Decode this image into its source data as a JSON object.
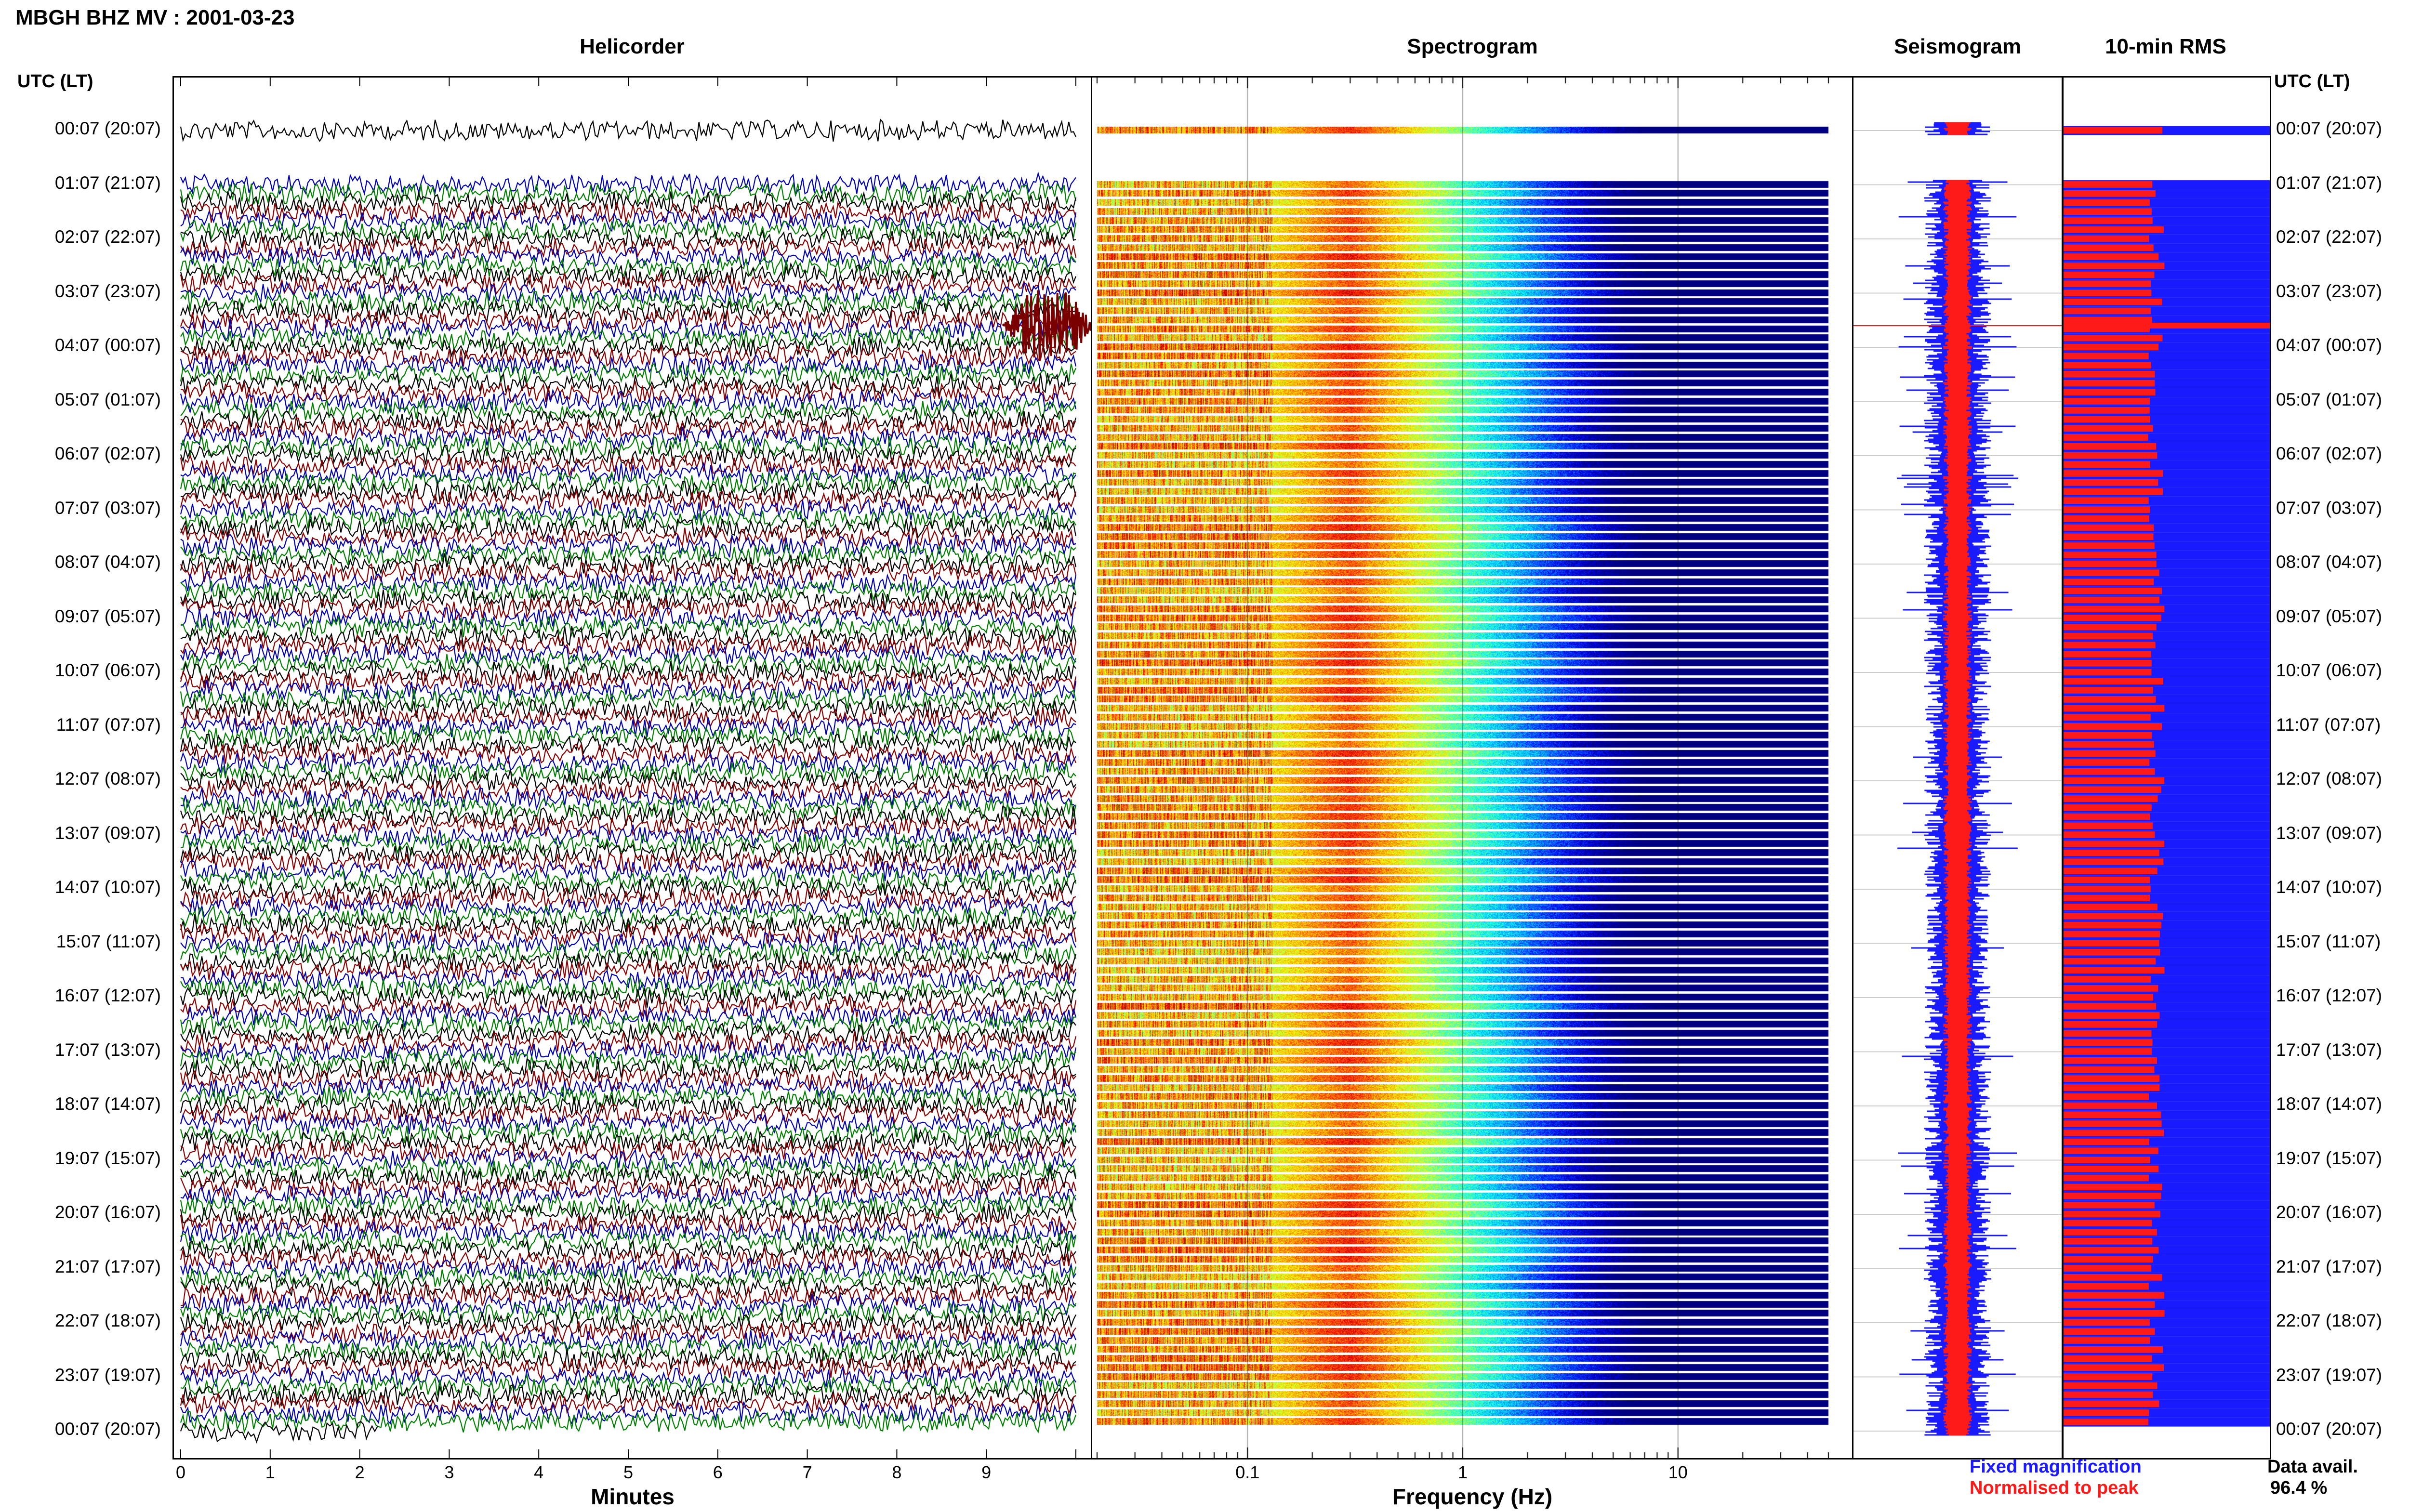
{
  "header": {
    "title": "MBGH BHZ MV : 2001-03-23"
  },
  "panels": {
    "helicorder": "Helicorder",
    "spectrogram": "Spectrogram",
    "seismogram": "Seismogram",
    "rms": "10-min RMS"
  },
  "axes": {
    "left_header": "UTC (LT)",
    "right_header": "UTC (LT)",
    "helicorder_xlabel": "Minutes",
    "spectrogram_xlabel": "Frequency (Hz)"
  },
  "legend": {
    "fixed": "Fixed magnification",
    "normalised": "Normalised to peak",
    "colors": {
      "fixed": "#1a1aff",
      "normalised": "#ff1a1a"
    }
  },
  "data_availability": {
    "label": "Data avail.",
    "value": "96.4 %"
  },
  "time_labels": [
    "00:07 (20:07)",
    "01:07 (21:07)",
    "02:07 (22:07)",
    "03:07 (23:07)",
    "04:07 (00:07)",
    "05:07 (01:07)",
    "06:07 (02:07)",
    "07:07 (03:07)",
    "08:07 (04:07)",
    "09:07 (05:07)",
    "10:07 (06:07)",
    "11:07 (07:07)",
    "12:07 (08:07)",
    "13:07 (09:07)",
    "14:07 (10:07)",
    "15:07 (11:07)",
    "16:07 (12:07)",
    "17:07 (13:07)",
    "18:07 (14:07)",
    "19:07 (15:07)",
    "20:07 (16:07)",
    "21:07 (17:07)",
    "22:07 (18:07)",
    "23:07 (19:07)",
    "00:07 (20:07)"
  ],
  "chart_data": [
    {
      "type": "line",
      "panel": "Helicorder",
      "xlabel": "Minutes",
      "xlim": [
        0,
        10
      ],
      "x_ticks": [
        "0",
        "1",
        "2",
        "3",
        "4",
        "5",
        "6",
        "7",
        "8",
        "9"
      ],
      "trace_colors": [
        "#000000",
        "#8b0000",
        "#0000b0",
        "#008000"
      ],
      "rows_per_hour": 6,
      "notes": "10-minute helicorder lines, one per row; data gap after the first hour (00:17–00:57)"
    },
    {
      "type": "heatmap",
      "panel": "Spectrogram",
      "xlabel": "Frequency (Hz)",
      "x_scale": "log",
      "xlim": [
        0.02,
        50
      ],
      "x_ticks": [
        "0.1",
        "1",
        "10"
      ],
      "colormap": "jet"
    },
    {
      "type": "bar",
      "panel": "Seismogram",
      "series": [
        {
          "name": "Fixed magnification",
          "color": "#1a1aff"
        },
        {
          "name": "Normalised to peak",
          "color": "#ff1a1a"
        }
      ]
    },
    {
      "type": "bar",
      "panel": "10-min RMS",
      "orientation": "horizontal",
      "normalised_level": 0.45,
      "colors": {
        "fill": "#1a1aff",
        "bar": "#ff1a1a"
      }
    }
  ]
}
